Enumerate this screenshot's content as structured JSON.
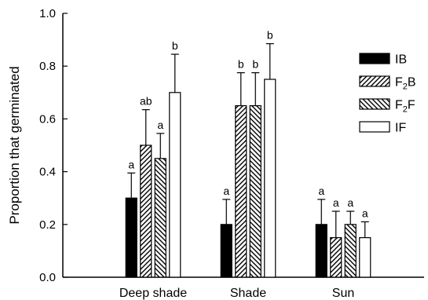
{
  "chart_data": {
    "type": "bar",
    "title": "",
    "xlabel": "",
    "ylabel": "Proportion that germinated",
    "ylim": [
      0,
      1.0
    ],
    "yticks": [
      "0.0",
      "0.2",
      "0.4",
      "0.6",
      "0.8",
      "1.0"
    ],
    "ytick_values": [
      0,
      0.2,
      0.4,
      0.6,
      0.8,
      1.0
    ],
    "categories": [
      "Deep shade",
      "Shade",
      "Sun"
    ],
    "legend_position": "top-right",
    "grid": false,
    "series": [
      {
        "name": "IB",
        "sub": "",
        "tail": "",
        "pattern": "solid",
        "color": "#000000",
        "values": [
          0.3,
          0.2,
          0.2
        ],
        "errors": [
          0.095,
          0.095,
          0.095
        ],
        "letters": [
          "a",
          "a",
          "a"
        ]
      },
      {
        "name": "F",
        "sub": "2",
        "tail": "B",
        "pattern": "hatch-right",
        "color": "#000000",
        "values": [
          0.5,
          0.65,
          0.15
        ],
        "errors": [
          0.135,
          0.125,
          0.1
        ],
        "letters": [
          "ab",
          "b",
          "a"
        ]
      },
      {
        "name": "F",
        "sub": "2",
        "tail": "F",
        "pattern": "hatch-left",
        "color": "#000000",
        "values": [
          0.45,
          0.65,
          0.2
        ],
        "errors": [
          0.095,
          0.125,
          0.05
        ],
        "letters": [
          "a",
          "b",
          "a"
        ]
      },
      {
        "name": "IF",
        "sub": "",
        "tail": "",
        "pattern": "open",
        "color": "#ffffff",
        "values": [
          0.7,
          0.75,
          0.15
        ],
        "errors": [
          0.145,
          0.135,
          0.06
        ],
        "letters": [
          "b",
          "b",
          "a"
        ]
      }
    ]
  }
}
